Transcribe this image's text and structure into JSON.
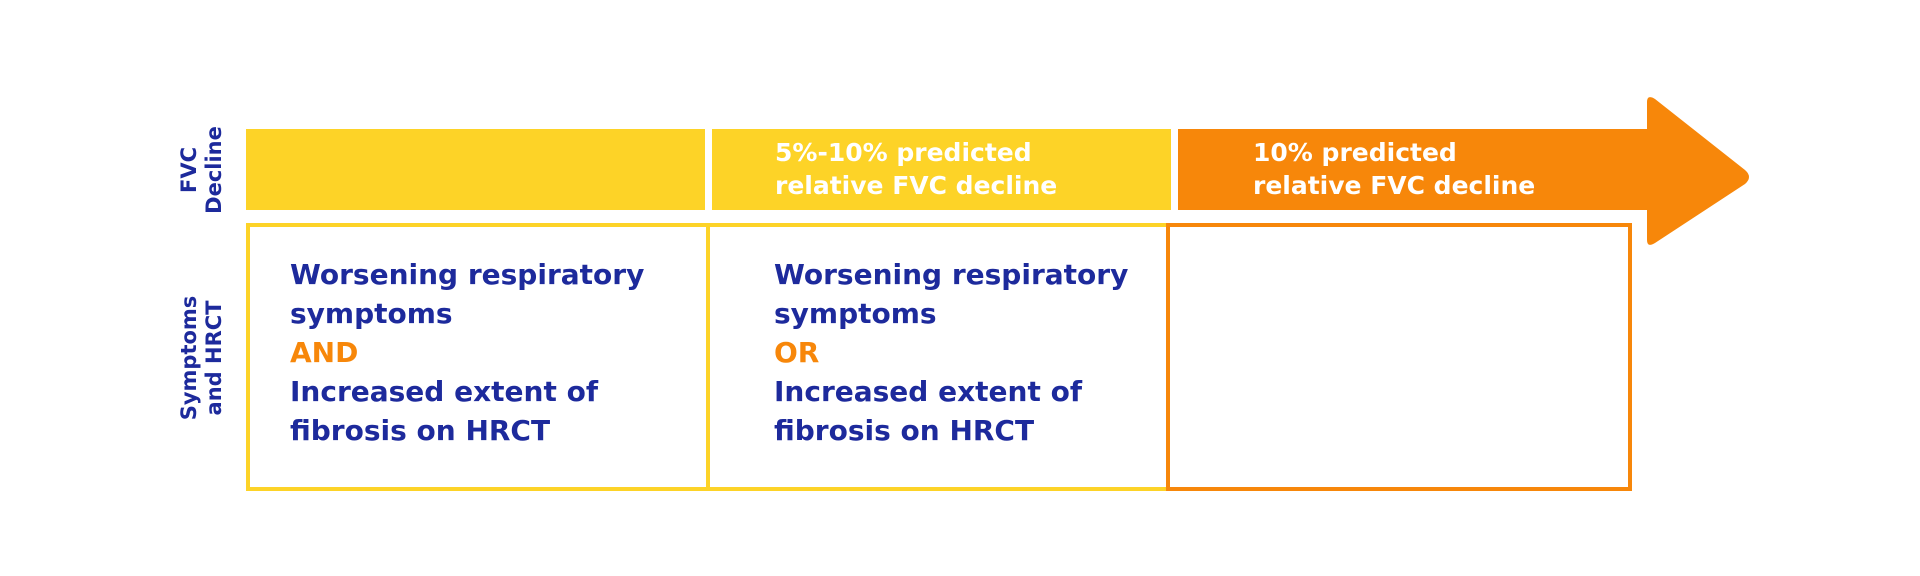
{
  "colors": {
    "yellow": "#fdd327",
    "orange": "#f7870a",
    "navy": "#1d2a9c",
    "white": "#ffffff"
  },
  "rows": {
    "fvc_label": "FVC\nDecline",
    "symptoms_label": "Symptoms\nand HRCT"
  },
  "fvc_bands": [
    {
      "line1": "",
      "line2": ""
    },
    {
      "line1": "5%-10% predicted",
      "line2": "relative FVC decline"
    },
    {
      "line1": "10% predicted",
      "line2": "relative FVC decline"
    }
  ],
  "cells": [
    {
      "line1": "Worsening respiratory",
      "line2": "symptoms",
      "conjunction": "AND",
      "line3": "Increased extent of",
      "line4": "fibrosis on HRCT"
    },
    {
      "line1": "Worsening respiratory",
      "line2": "symptoms",
      "conjunction": "OR",
      "line3": "Increased extent of",
      "line4": "fibrosis on HRCT"
    },
    {
      "line1": "",
      "line2": "",
      "conjunction": "",
      "line3": "",
      "line4": ""
    }
  ]
}
